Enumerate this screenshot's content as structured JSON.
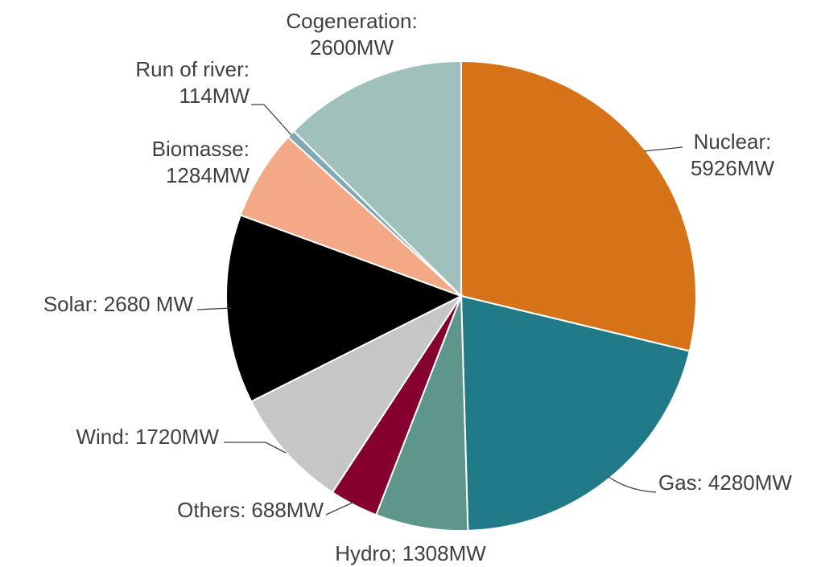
{
  "chart_data": {
    "type": "pie",
    "categories": [
      "Nuclear:",
      "Gas:",
      "Hydro;",
      "Others:",
      "Wind:",
      "Solar:",
      "Biomasse:",
      "Run of river:",
      "Cogeneration:"
    ],
    "values": [
      5926,
      4280,
      1308,
      688,
      1720,
      2680,
      1284,
      114,
      2600
    ],
    "value_labels": [
      "5926MW",
      "4280MW",
      "1308MW",
      "688MW",
      "1720MW",
      "2680 MW",
      "1284MW",
      "114MW",
      "2600MW"
    ],
    "colors": [
      "#d67318",
      "#217a87",
      "#5e968b",
      "#85002f",
      "#c6c6c4",
      "#000000",
      "#f3a886",
      "#7fa9b5",
      "#a0c0bb"
    ]
  }
}
